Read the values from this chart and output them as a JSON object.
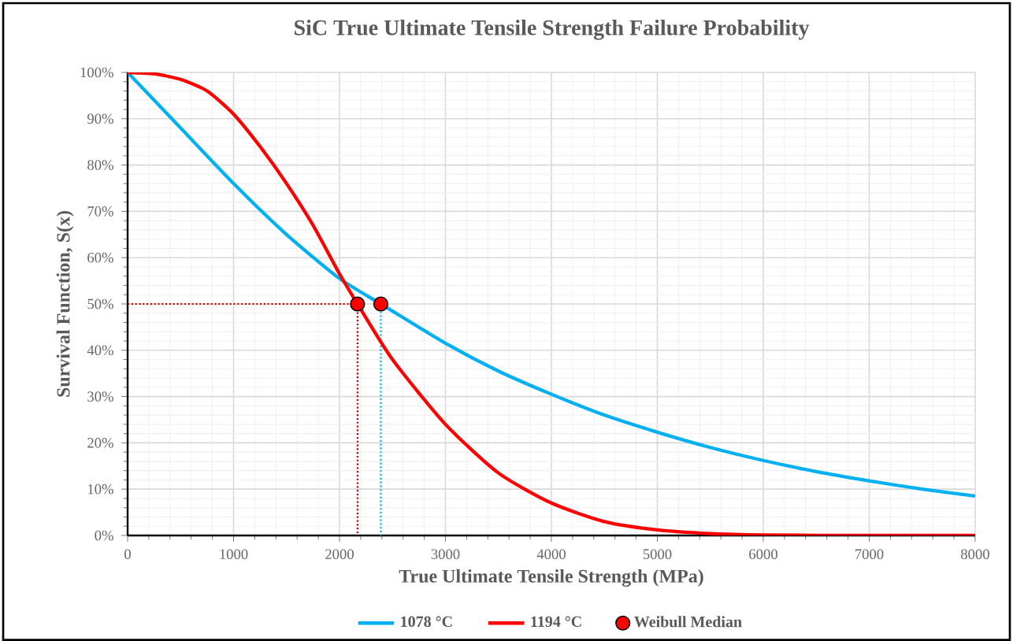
{
  "chart_data": {
    "type": "line",
    "title": "SiC True Ultimate Tensile Strength Failure Probability",
    "xlabel": "True Ultimate Tensile Strength (MPa)",
    "ylabel": "Survival Function,  S(x)",
    "xlim": [
      0,
      8000
    ],
    "xticks": [
      0,
      1000,
      2000,
      3000,
      4000,
      5000,
      6000,
      7000,
      8000
    ],
    "ylim": [
      0,
      100
    ],
    "yticks": [
      {
        "value": 0,
        "label": "0%"
      },
      {
        "value": 10,
        "label": "10%"
      },
      {
        "value": 20,
        "label": "20%"
      },
      {
        "value": 30,
        "label": "30%"
      },
      {
        "value": 40,
        "label": "40%"
      },
      {
        "value": 50,
        "label": "50%"
      },
      {
        "value": 60,
        "label": "60%"
      },
      {
        "value": 70,
        "label": "70%"
      },
      {
        "value": 80,
        "label": "80%"
      },
      {
        "value": 90,
        "label": "90%"
      },
      {
        "value": 100,
        "label": "100%"
      }
    ],
    "grid": true,
    "legend": "bottom",
    "series": [
      {
        "name": "1078 °C",
        "color": "#00b0f0",
        "x": [
          0,
          500,
          1000,
          1500,
          2000,
          2390,
          3000,
          3500,
          4000,
          4500,
          5000,
          5500,
          6000,
          6500,
          7000,
          7500,
          8000
        ],
        "values": [
          100,
          88,
          76,
          65,
          55.5,
          50,
          41.5,
          35.5,
          30.5,
          26,
          22.3,
          19,
          16.2,
          13.8,
          11.8,
          10,
          8.5
        ]
      },
      {
        "name": "1194 °C",
        "color": "#ff0000",
        "x": [
          0,
          250,
          500,
          750,
          1000,
          1250,
          1500,
          1750,
          2000,
          2170,
          2500,
          3000,
          3500,
          4000,
          4500,
          5000,
          5500,
          6000,
          7000,
          8000
        ],
        "values": [
          100,
          99.7,
          98.5,
          96,
          91,
          84,
          76,
          67,
          56.5,
          50,
          38,
          24,
          13.5,
          7,
          3,
          1.2,
          0.4,
          0.1,
          0,
          0
        ]
      },
      {
        "line_style": "dotted",
        "color": "#c00000",
        "x": [
          0,
          2170,
          2170
        ],
        "values": [
          50,
          50,
          0
        ]
      },
      {
        "line_style": "dotted",
        "color": "#00b0f0",
        "x": [
          2390,
          2390
        ],
        "values": [
          50,
          0
        ]
      },
      {
        "name": "Weibull Median",
        "type": "scatter",
        "marker": "circle",
        "color": "#ff0000",
        "x": [
          2170,
          2390
        ],
        "values": [
          50,
          50
        ]
      }
    ]
  }
}
